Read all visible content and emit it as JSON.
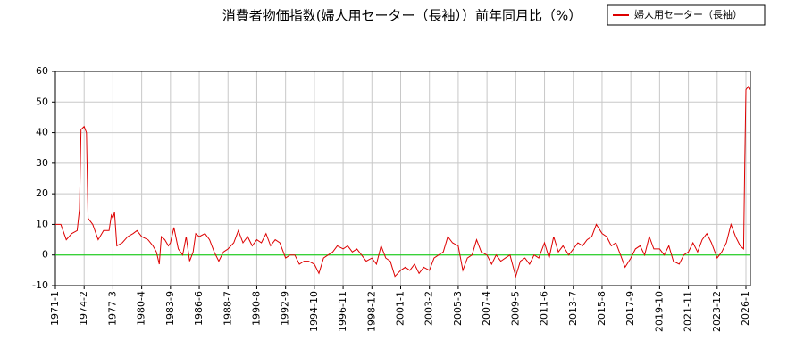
{
  "chart_data": {
    "type": "line",
    "title": "消費者物価指数(婦人用セーター（長袖））前年同月比（%）",
    "x": [
      "1971-1",
      "1971-8",
      "1972-3",
      "1972-10",
      "1973-5",
      "1973-8",
      "1973-10",
      "1974-2",
      "1974-5",
      "1974-7",
      "1975-1",
      "1975-8",
      "1976-3",
      "1976-10",
      "1977-1",
      "1977-3",
      "1977-5",
      "1977-8",
      "1978-3",
      "1978-10",
      "1979-5",
      "1979-10",
      "1980-4",
      "1981-1",
      "1981-8",
      "1982-1",
      "1982-5",
      "1982-8",
      "1983-1",
      "1983-6",
      "1983-9",
      "1984-1",
      "1984-6",
      "1984-11",
      "1985-3",
      "1985-7",
      "1985-11",
      "1986-2",
      "1986-6",
      "1986-11",
      "1987-3",
      "1987-7",
      "1987-11",
      "1988-3",
      "1988-7",
      "1988-12",
      "1989-4",
      "1989-8",
      "1989-12",
      "1990-4",
      "1990-8",
      "1990-12",
      "1991-4",
      "1991-8",
      "1991-12",
      "1992-4",
      "1992-9",
      "1993-1",
      "1993-5",
      "1993-9",
      "1994-1",
      "1994-5",
      "1994-10",
      "1995-2",
      "1995-6",
      "1995-10",
      "1996-2",
      "1996-6",
      "1996-11",
      "1997-3",
      "1997-7",
      "1997-11",
      "1998-3",
      "1998-7",
      "1998-12",
      "1999-4",
      "1999-8",
      "1999-12",
      "2000-4",
      "2000-8",
      "2001-1",
      "2001-5",
      "2001-9",
      "2002-1",
      "2002-5",
      "2002-9",
      "2003-2",
      "2003-6",
      "2003-10",
      "2004-2",
      "2004-6",
      "2004-10",
      "2005-3",
      "2005-7",
      "2005-11",
      "2006-3",
      "2006-7",
      "2006-11",
      "2007-4",
      "2007-8",
      "2007-12",
      "2008-4",
      "2008-8",
      "2008-12",
      "2009-5",
      "2009-9",
      "2010-1",
      "2010-5",
      "2010-9",
      "2011-1",
      "2011-6",
      "2011-10",
      "2012-2",
      "2012-6",
      "2012-10",
      "2013-3",
      "2013-7",
      "2013-11",
      "2014-3",
      "2014-7",
      "2014-11",
      "2015-3",
      "2015-8",
      "2015-12",
      "2016-4",
      "2016-8",
      "2016-12",
      "2017-4",
      "2017-9",
      "2018-1",
      "2018-5",
      "2018-9",
      "2019-1",
      "2019-5",
      "2019-10",
      "2020-2",
      "2020-6",
      "2020-10",
      "2021-3",
      "2021-7",
      "2021-11",
      "2022-3",
      "2022-7",
      "2022-11",
      "2023-3",
      "2023-7",
      "2023-12",
      "2024-4",
      "2024-8",
      "2024-12",
      "2025-4",
      "2025-8",
      "2025-11",
      "2025-12",
      "2026-1",
      "2026-3",
      "2026-4"
    ],
    "series": [
      {
        "name": "婦人用セーター（長袖）",
        "color": "#dd0000",
        "values": [
          10,
          10,
          5,
          7,
          8,
          15,
          41,
          42,
          40,
          12,
          10,
          5,
          8,
          8,
          13,
          12,
          14,
          3,
          4,
          6,
          7,
          8,
          6,
          5,
          3,
          1,
          -3,
          6,
          5,
          3,
          4,
          9,
          2,
          0,
          6,
          -2,
          1,
          7,
          6,
          7,
          5,
          1,
          -2,
          1,
          2,
          4,
          8,
          4,
          6,
          3,
          5,
          4,
          7,
          3,
          5,
          4,
          -1,
          0,
          0,
          -3,
          -2,
          -2,
          -3,
          -6,
          -1,
          0,
          1,
          3,
          2,
          3,
          1,
          2,
          0,
          -2,
          -1,
          -3,
          3,
          -1,
          -2,
          -7,
          -5,
          -4,
          -5,
          -3,
          -6,
          -4,
          -5,
          -1,
          0,
          1,
          6,
          4,
          3,
          -5,
          -1,
          0,
          5,
          1,
          0,
          -3,
          0,
          -2,
          -1,
          0,
          -7,
          -2,
          -1,
          -3,
          0,
          -1,
          4,
          -1,
          6,
          1,
          3,
          0,
          2,
          4,
          3,
          5,
          6,
          10,
          7,
          6,
          3,
          4,
          0,
          -4,
          -1,
          2,
          3,
          0,
          6,
          2,
          2,
          0,
          3,
          -2,
          -3,
          0,
          1,
          4,
          1,
          5,
          7,
          4,
          -1,
          1,
          4,
          10,
          6,
          3,
          2,
          30,
          54,
          55,
          54
        ]
      }
    ],
    "xlim": [
      "1971-1",
      "2026-4"
    ],
    "xticks": [
      "1971-1",
      "1974-2",
      "1977-3",
      "1980-4",
      "1983-9",
      "1986-6",
      "1988-7",
      "1990-8",
      "1992-9",
      "1994-10",
      "1996-11",
      "1998-12",
      "2001-1",
      "2003-2",
      "2005-3",
      "2007-4",
      "2009-5",
      "2011-6",
      "2013-7",
      "2015-8",
      "2017-9",
      "2019-10",
      "2021-11",
      "2023-12",
      "2026-1"
    ],
    "ylim": [
      -10,
      60
    ],
    "yticks": [
      -10,
      0,
      10,
      20,
      30,
      40,
      50,
      60
    ],
    "grid": true,
    "reference_line": {
      "value": 0,
      "color": "#00cc00"
    },
    "legend": "top-right"
  }
}
